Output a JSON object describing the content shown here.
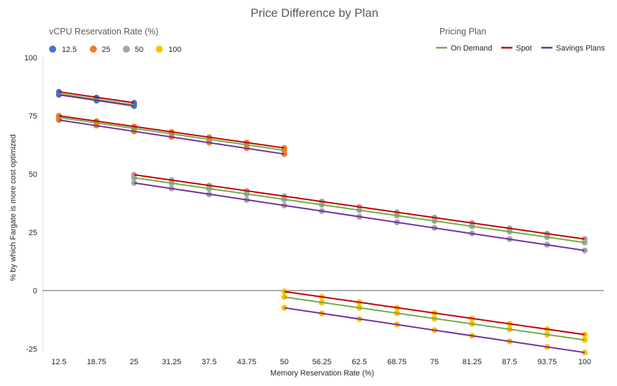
{
  "chart_data": {
    "type": "line",
    "title": "Price Difference by Plan",
    "xlabel": "Memory Reservation Rate (%)",
    "ylabel": "% by which Fargate is more cost optimized",
    "categories": [
      "12.5",
      "18.75",
      "25",
      "31.25",
      "37.5",
      "43.75",
      "50",
      "56.25",
      "62.5",
      "68.75",
      "75",
      "81.25",
      "87.5",
      "93.75",
      "100"
    ],
    "ylim": [
      -25,
      100
    ],
    "yticks": [
      "100",
      "75",
      "50",
      "25",
      "0",
      "-25"
    ],
    "vcpu_legend": {
      "title": "vCPU Reservation Rate (%)",
      "items": [
        {
          "label": "12.5",
          "color": "#4472C4"
        },
        {
          "label": "25",
          "color": "#ED7D31"
        },
        {
          "label": "50",
          "color": "#A5A5A5"
        },
        {
          "label": "100",
          "color": "#FFC000"
        }
      ]
    },
    "plan_legend": {
      "title": "Pricing Plan",
      "items": [
        {
          "label": "On Demand",
          "color": "#70AD47"
        },
        {
          "label": "Spot",
          "color": "#C00000"
        },
        {
          "label": "Savings Plans",
          "color": "#7030A0"
        }
      ]
    },
    "groups": [
      {
        "vcpu": "12.5",
        "color": "#4472C4",
        "start_index": 0,
        "series": [
          {
            "plan": "On Demand",
            "values": [
              84.5,
              82.0,
              79.7
            ]
          },
          {
            "plan": "Spot",
            "values": [
              85.3,
              82.8,
              80.6
            ]
          },
          {
            "plan": "Savings Plans",
            "values": [
              84.0,
              81.5,
              79.2
            ]
          }
        ]
      },
      {
        "vcpu": "25",
        "color": "#ED7D31",
        "start_index": 0,
        "series": [
          {
            "plan": "On Demand",
            "values": [
              74.3,
              71.8,
              69.6,
              67.3,
              65.0,
              62.6,
              60.2
            ]
          },
          {
            "plan": "Spot",
            "values": [
              75.0,
              72.7,
              70.4,
              68.1,
              65.8,
              63.5,
              61.2
            ]
          },
          {
            "plan": "Savings Plans",
            "values": [
              73.2,
              70.8,
              68.3,
              65.9,
              63.5,
              61.1,
              58.6
            ]
          }
        ]
      },
      {
        "vcpu": "50",
        "color": "#A5A5A5",
        "start_index": 2,
        "series": [
          {
            "plan": "On Demand",
            "values": [
              48.4,
              46.1,
              43.7,
              41.4,
              39.1,
              36.8,
              34.5,
              32.2,
              29.9,
              27.6,
              25.3,
              23.0,
              20.6
            ]
          },
          {
            "plan": "Spot",
            "values": [
              49.7,
              47.4,
              45.1,
              42.8,
              40.5,
              38.2,
              35.9,
              33.6,
              31.3,
              29.0,
              26.7,
              24.4,
              22.1
            ]
          },
          {
            "plan": "Savings Plans",
            "values": [
              46.2,
              43.8,
              41.3,
              38.9,
              36.5,
              34.1,
              31.7,
              29.3,
              26.9,
              24.5,
              22.1,
              19.7,
              17.2
            ]
          }
        ]
      },
      {
        "vcpu": "100",
        "color": "#FFC000",
        "start_index": 6,
        "series": [
          {
            "plan": "On Demand",
            "values": [
              -2.8,
              -5.1,
              -7.4,
              -9.7,
              -12.0,
              -14.3,
              -16.6,
              -18.9,
              -21.2
            ]
          },
          {
            "plan": "Spot",
            "values": [
              -0.4,
              -2.7,
              -5.0,
              -7.4,
              -9.7,
              -12.0,
              -14.3,
              -16.6,
              -18.9
            ]
          },
          {
            "plan": "Savings Plans",
            "values": [
              -7.4,
              -9.8,
              -12.2,
              -14.6,
              -17.0,
              -19.4,
              -21.8,
              -24.2,
              -26.6
            ]
          }
        ]
      }
    ]
  }
}
